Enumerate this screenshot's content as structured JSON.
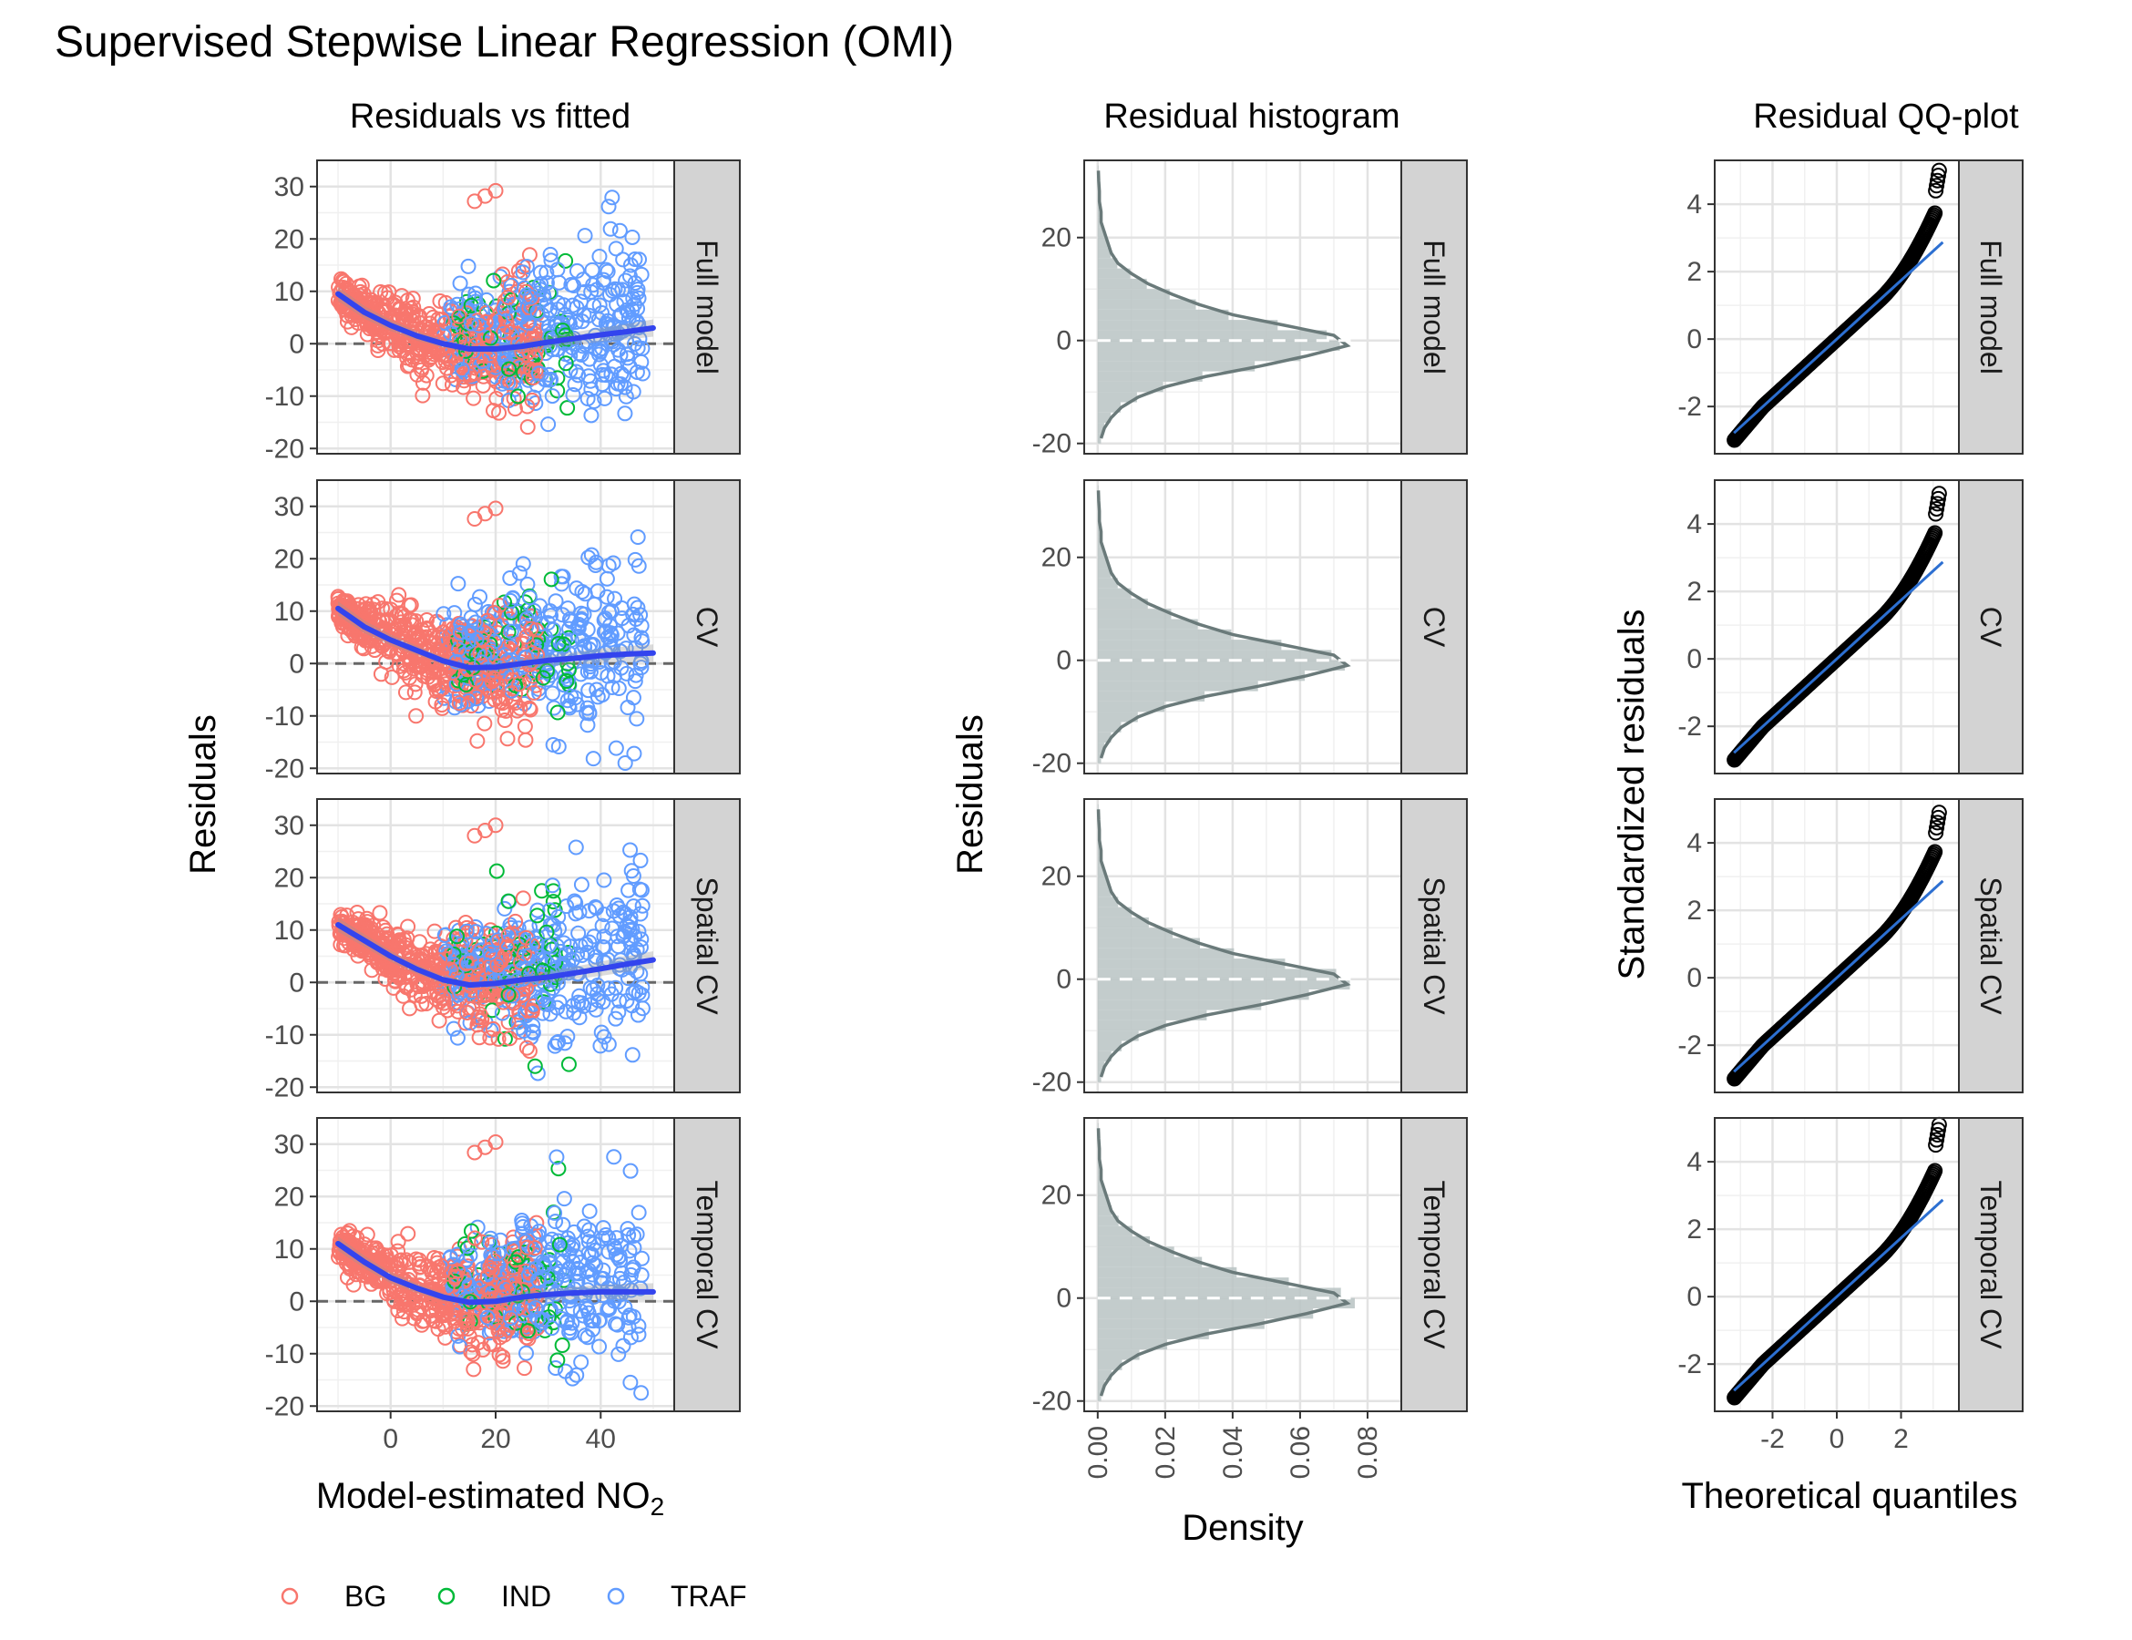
{
  "title": "Supervised Stepwise Linear Regression (OMI)",
  "facets": [
    "Full model",
    "CV",
    "Spatial CV",
    "Temporal CV"
  ],
  "colors": {
    "BG": "#F8766D",
    "IND": "#00BA38",
    "TRAF": "#619CFF",
    "smooth": "#3344EE",
    "hist_fill": "#B9C3C3",
    "density_line": "#6A7A7A",
    "qq_line": "#2C6FD1",
    "strip": "#D3D3D3"
  },
  "legend": {
    "items": [
      "BG",
      "IND",
      "TRAF"
    ]
  },
  "chart_data": [
    {
      "type": "scatter",
      "title": "Residuals vs fitted",
      "xlabel": "Model-estimated NO",
      "xlabel_sub": "2",
      "ylabel": "Residuals",
      "xlim": [
        -14,
        54
      ],
      "ylim": [
        -21,
        35
      ],
      "xticks": [
        0,
        20,
        40
      ],
      "yticks": [
        -20,
        -10,
        0,
        10,
        20,
        30
      ],
      "reference_line": 0,
      "groups": [
        "BG",
        "IND",
        "TRAF"
      ],
      "smooth": {
        "x": [
          -10,
          -5,
          0,
          5,
          10,
          15,
          20,
          25,
          30,
          35,
          40,
          45,
          50
        ],
        "Full model": [
          9.5,
          6,
          3.5,
          1.5,
          0,
          -1,
          -1,
          -0.5,
          0.3,
          1,
          1.7,
          2.3,
          3
        ],
        "CV": [
          10.5,
          7,
          4.5,
          2.5,
          0.5,
          -0.8,
          -0.7,
          0,
          0.6,
          1,
          1.5,
          1.8,
          2
        ],
        "Spatial CV": [
          11,
          8,
          5,
          2.5,
          0.5,
          -0.5,
          -0.2,
          0.5,
          1,
          1.8,
          2.6,
          3.5,
          4.3
        ],
        "Temporal CV": [
          11,
          7.5,
          4.5,
          2.5,
          0.8,
          -0.2,
          0,
          0.8,
          1.3,
          1.6,
          1.8,
          1.8,
          1.8
        ]
      }
    },
    {
      "type": "bar",
      "title": "Residual histogram",
      "xlabel": "Density",
      "ylabel": "Residuals",
      "xlim": [
        -0.004,
        0.09
      ],
      "ylim": [
        -22,
        35
      ],
      "xticks": [
        0.0,
        0.02,
        0.04,
        0.06,
        0.08
      ],
      "xtick_labels": [
        "0.00",
        "0.02",
        "0.04",
        "0.06",
        "0.08"
      ],
      "yticks": [
        -20,
        0,
        20
      ],
      "bin_centers": [
        -19,
        -17,
        -15,
        -13,
        -11,
        -9,
        -7,
        -5,
        -3,
        -1,
        1,
        3,
        5,
        7,
        9,
        11,
        13,
        15,
        17,
        19,
        21,
        23,
        25,
        27,
        29,
        31,
        33
      ],
      "density": [
        0.001,
        0.002,
        0.004,
        0.007,
        0.012,
        0.02,
        0.032,
        0.048,
        0.062,
        0.074,
        0.07,
        0.055,
        0.04,
        0.03,
        0.022,
        0.015,
        0.01,
        0.006,
        0.004,
        0.003,
        0.002,
        0.001,
        0.001,
        0.0005,
        0.0005,
        0.0003,
        0.0002
      ]
    },
    {
      "type": "scatter",
      "title": "Residual QQ-plot",
      "xlabel": "Theoretical quantiles",
      "ylabel": "Standardized residuals",
      "xlim": [
        -3.8,
        3.8
      ],
      "ylim": [
        -3.4,
        5.3
      ],
      "xticks": [
        -2,
        0,
        2
      ],
      "yticks": [
        -2,
        0,
        2,
        4
      ],
      "reference_line": {
        "slope": 0.87,
        "intercept": 0
      },
      "upper_tail": {
        "Full model": 5.0,
        "CV": 4.9,
        "Spatial CV": 4.9,
        "Temporal CV": 5.1
      }
    }
  ]
}
